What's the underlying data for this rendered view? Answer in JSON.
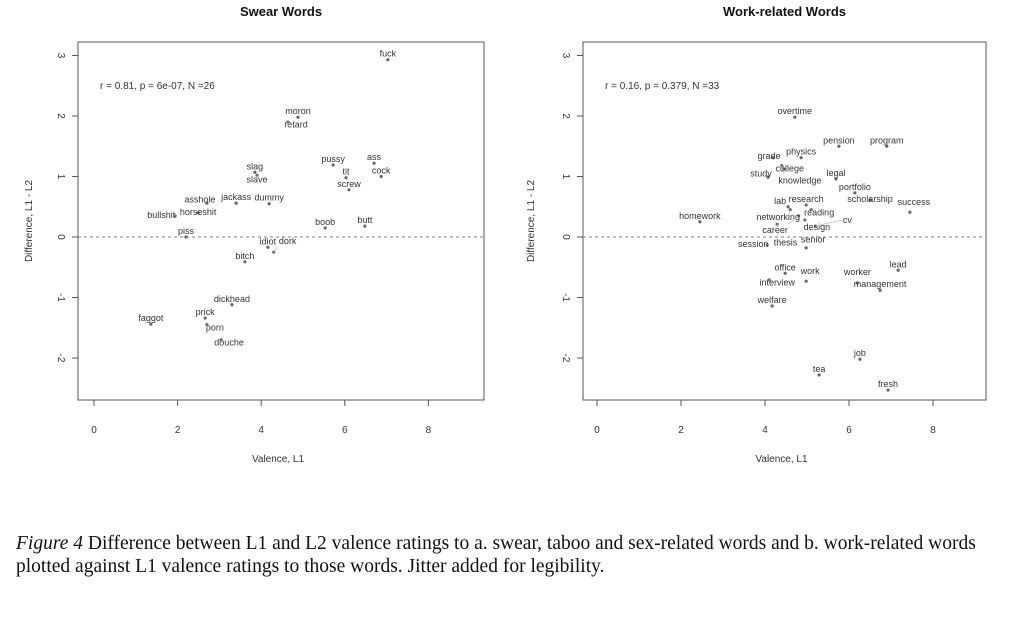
{
  "chart_data": [
    {
      "type": "scatter",
      "title": "Swear Words",
      "xlabel": "Valence, L1",
      "ylabel": "Difference, L1 - L2",
      "xlim": [
        -0.5,
        9.3
      ],
      "ylim": [
        -2.7,
        3.2
      ],
      "xticks": [
        0,
        2,
        4,
        6,
        8
      ],
      "yticks": [
        -2,
        -1,
        0,
        1,
        2,
        3
      ],
      "reference_line": {
        "y": 0,
        "style": "dashed"
      },
      "annotation": "r = 0.81, p = 6e-07, N =26",
      "grid": false,
      "points": [
        {
          "label": "fuck",
          "x": 7.03,
          "y": 2.93
        },
        {
          "label": "moron",
          "x": 4.88,
          "y": 1.98
        },
        {
          "label": "retard",
          "x": 4.64,
          "y": 1.9
        },
        {
          "label": "slag",
          "x": 3.85,
          "y": 1.07
        },
        {
          "label": "slave",
          "x": 3.9,
          "y": 1.02
        },
        {
          "label": "pussy",
          "x": 5.72,
          "y": 1.19
        },
        {
          "label": "tit",
          "x": 6.03,
          "y": 0.98
        },
        {
          "label": "screw",
          "x": 6.1,
          "y": 0.78
        },
        {
          "label": "ass",
          "x": 6.7,
          "y": 1.22
        },
        {
          "label": "cock",
          "x": 6.87,
          "y": 1.0
        },
        {
          "label": "dummy",
          "x": 4.19,
          "y": 0.55
        },
        {
          "label": "jackass",
          "x": 3.4,
          "y": 0.56
        },
        {
          "label": "asshole",
          "x": 2.7,
          "y": 0.56
        },
        {
          "label": "horseshit",
          "x": 2.49,
          "y": 0.4
        },
        {
          "label": "bullshit",
          "x": 1.94,
          "y": 0.35
        },
        {
          "label": "piss",
          "x": 2.2,
          "y": 0.0
        },
        {
          "label": "boob",
          "x": 5.53,
          "y": 0.15
        },
        {
          "label": "butt",
          "x": 6.48,
          "y": 0.18
        },
        {
          "label": "idiot",
          "x": 4.16,
          "y": -0.17
        },
        {
          "label": "dork",
          "x": 4.3,
          "y": -0.25
        },
        {
          "label": "bitch",
          "x": 3.61,
          "y": -0.41
        },
        {
          "label": "dickhead",
          "x": 3.3,
          "y": -1.12
        },
        {
          "label": "faggot",
          "x": 1.36,
          "y": -1.44
        },
        {
          "label": "prick",
          "x": 2.66,
          "y": -1.34
        },
        {
          "label": "porn",
          "x": 2.7,
          "y": -1.45
        },
        {
          "label": "douche",
          "x": 3.04,
          "y": -1.7
        }
      ]
    },
    {
      "type": "scatter",
      "title": "Work-related Words",
      "xlabel": "Valence, L1",
      "ylabel": "Difference, L1 - L2",
      "xlim": [
        -0.3,
        9.3
      ],
      "ylim": [
        -2.7,
        3.2
      ],
      "xticks": [
        0,
        2,
        4,
        6,
        8
      ],
      "yticks": [
        -2,
        -1,
        0,
        1,
        2,
        3
      ],
      "reference_line": {
        "y": 0,
        "style": "dashed"
      },
      "annotation": "r = 0.16, p = 0.379, N =33",
      "grid": false,
      "points": [
        {
          "label": "overtime",
          "x": 4.71,
          "y": 1.98
        },
        {
          "label": "pension",
          "x": 5.76,
          "y": 1.5
        },
        {
          "label": "program",
          "x": 6.9,
          "y": 1.5
        },
        {
          "label": "physics",
          "x": 4.86,
          "y": 1.31
        },
        {
          "label": "grade",
          "x": 4.19,
          "y": 1.31
        },
        {
          "label": "college",
          "x": 4.4,
          "y": 1.18
        },
        {
          "label": "knowledge",
          "x": 4.45,
          "y": 1.12
        },
        {
          "label": "study",
          "x": 4.07,
          "y": 0.99
        },
        {
          "label": "legal",
          "x": 5.69,
          "y": 0.96
        },
        {
          "label": "portfolio",
          "x": 6.14,
          "y": 0.73
        },
        {
          "label": "scholarship",
          "x": 6.5,
          "y": 0.61
        },
        {
          "label": "success",
          "x": 7.45,
          "y": 0.41
        },
        {
          "label": "research",
          "x": 4.98,
          "y": 0.53
        },
        {
          "label": "reading",
          "x": 5.1,
          "y": 0.45
        },
        {
          "label": "networking",
          "x": 4.6,
          "y": 0.45
        },
        {
          "label": "lab",
          "x": 4.55,
          "y": 0.5
        },
        {
          "label": "design",
          "x": 4.95,
          "y": 0.28
        },
        {
          "label": "cv",
          "x": 5.2,
          "y": 0.18
        },
        {
          "label": "career",
          "x": 4.8,
          "y": 0.35
        },
        {
          "label": "homework",
          "x": 2.45,
          "y": 0.25
        },
        {
          "label": "thesis",
          "x": 4.29,
          "y": 0.21
        },
        {
          "label": "session",
          "x": 4.05,
          "y": -0.13
        },
        {
          "label": "senior",
          "x": 4.98,
          "y": -0.18
        },
        {
          "label": "lead",
          "x": 7.17,
          "y": -0.55
        },
        {
          "label": "office",
          "x": 4.48,
          "y": -0.6
        },
        {
          "label": "work",
          "x": 4.98,
          "y": -0.73
        },
        {
          "label": "interview",
          "x": 4.1,
          "y": -0.71
        },
        {
          "label": "management",
          "x": 6.74,
          "y": -0.88
        },
        {
          "label": "worker",
          "x": 6.2,
          "y": -0.76
        },
        {
          "label": "welfare",
          "x": 4.17,
          "y": -1.14
        },
        {
          "label": "job",
          "x": 6.26,
          "y": -2.02
        },
        {
          "label": "tea",
          "x": 5.29,
          "y": -2.28
        },
        {
          "label": "fresh",
          "x": 6.93,
          "y": -2.53
        }
      ]
    }
  ],
  "caption": {
    "label": "Figure 4",
    "text": " Difference between L1 and L2 valence ratings to a. swear, taboo and sex-related words and b. work-related words plotted against L1 valence ratings to those words. Jitter added for legibility."
  }
}
